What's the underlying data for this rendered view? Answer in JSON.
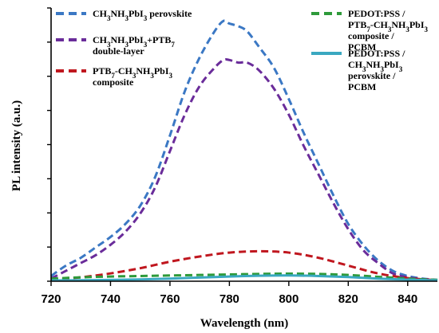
{
  "chart_data": {
    "type": "line",
    "title": "",
    "xlabel": "Wavelength (nm)",
    "ylabel": "PL intensity (a.u.)",
    "xlim": [
      720,
      850
    ],
    "ylim": [
      0,
      1.05
    ],
    "x_ticks": [
      "720",
      "740",
      "760",
      "780",
      "800",
      "820",
      "840"
    ],
    "y_tick_labels_shown": false,
    "grid": false,
    "legend_placement": "top",
    "series": [
      {
        "name": "CH3NH3PbI3 perovskite",
        "legend_lines": [
          "CH3NH3PbI3 perovskite"
        ],
        "color": "#3b78c4",
        "dash": "dashed",
        "x": [
          720,
          725,
          730,
          735,
          740,
          745,
          750,
          755,
          760,
          765,
          770,
          775,
          778,
          780,
          783,
          786,
          790,
          795,
          800,
          805,
          810,
          815,
          820,
          825,
          830,
          835,
          840,
          845,
          850
        ],
        "y": [
          0.02,
          0.06,
          0.09,
          0.13,
          0.17,
          0.22,
          0.29,
          0.4,
          0.56,
          0.73,
          0.86,
          0.96,
          1.0,
          0.99,
          0.98,
          0.96,
          0.9,
          0.82,
          0.7,
          0.57,
          0.45,
          0.33,
          0.22,
          0.14,
          0.08,
          0.04,
          0.02,
          0.01,
          0.005
        ]
      },
      {
        "name": "CH3NH3PbI3+PTB7 double-layer",
        "legend_lines": [
          "CH3NH3PbI3+PTB7",
          "double-layer"
        ],
        "color": "#6a2c9a",
        "dash": "dashed",
        "x": [
          720,
          725,
          730,
          735,
          740,
          745,
          750,
          755,
          760,
          765,
          770,
          775,
          778,
          780,
          783,
          786,
          790,
          795,
          800,
          805,
          810,
          815,
          820,
          825,
          830,
          835,
          840,
          845,
          850
        ],
        "y": [
          0.01,
          0.04,
          0.07,
          0.1,
          0.14,
          0.19,
          0.26,
          0.36,
          0.5,
          0.64,
          0.75,
          0.82,
          0.85,
          0.85,
          0.84,
          0.84,
          0.81,
          0.74,
          0.64,
          0.52,
          0.41,
          0.3,
          0.2,
          0.12,
          0.07,
          0.03,
          0.015,
          0.008,
          0.004
        ]
      },
      {
        "name": "PTB7-CH3NH3PbI3 composite",
        "legend_lines": [
          "PTB7-CH3NH3PbI3",
          "composite"
        ],
        "color": "#c0171f",
        "dash": "dashed",
        "x": [
          720,
          730,
          740,
          750,
          760,
          770,
          780,
          790,
          800,
          810,
          820,
          830,
          840,
          850
        ],
        "y": [
          0.005,
          0.015,
          0.03,
          0.05,
          0.075,
          0.095,
          0.11,
          0.115,
          0.11,
          0.09,
          0.06,
          0.03,
          0.012,
          0.004
        ]
      },
      {
        "name": "PEDOT:PSS / PTB7-CH3NH3PbI3 composite / PCBM",
        "legend_lines": [
          "PEDOT:PSS /",
          "PTB7-CH3NH3PbI3",
          "composite /",
          "PCBM"
        ],
        "color": "#2e9a3a",
        "dash": "dashed",
        "x": [
          720,
          730,
          740,
          750,
          760,
          770,
          780,
          790,
          800,
          810,
          820,
          830,
          840,
          850
        ],
        "y": [
          0.01,
          0.015,
          0.018,
          0.02,
          0.022,
          0.024,
          0.026,
          0.028,
          0.029,
          0.028,
          0.024,
          0.017,
          0.01,
          0.005
        ]
      },
      {
        "name": "PEDOT:PSS / CH3NH3PbI3 perovskite / PCBM",
        "legend_lines": [
          "PEDOT:PSS /",
          "CH3NH3PbI3",
          "perovskite /",
          "PCBM"
        ],
        "color": "#3aa8c0",
        "dash": "solid",
        "x": [
          720,
          730,
          740,
          750,
          760,
          770,
          780,
          790,
          800,
          810,
          820,
          830,
          840,
          850
        ],
        "y": [
          0.003,
          0.004,
          0.005,
          0.007,
          0.01,
          0.014,
          0.018,
          0.021,
          0.022,
          0.02,
          0.016,
          0.01,
          0.006,
          0.003
        ]
      }
    ]
  }
}
